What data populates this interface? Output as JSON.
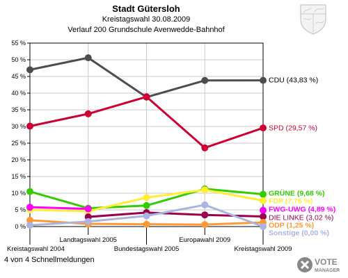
{
  "header": {
    "title": "Stadt Gütersloh",
    "subtitle": "Kreistagswahl 30.08.2009",
    "subtitle2": "Verlauf 200 Grundschule Avenwedde-Bahnhof"
  },
  "footer": {
    "text": "4 von 4 Schnellmeldungen"
  },
  "logo": {
    "line1": "VOTE",
    "line2": "MANAGER"
  },
  "chart_data": {
    "type": "line",
    "title": "Stadt Gütersloh",
    "x": [
      "Kreistagswahl 2004",
      "Landtagswahl 2005",
      "Bundestagswahl 2005",
      "Europawahl 2009",
      "Kreistagswahl 2009"
    ],
    "ylim": [
      0,
      55
    ],
    "yticks": [
      0,
      5,
      10,
      15,
      20,
      25,
      30,
      35,
      40,
      45,
      50,
      55
    ],
    "ytick_labels": [
      "0 %",
      "5 %",
      "10 %",
      "15 %",
      "20 %",
      "25 %",
      "30 %",
      "35 %",
      "40 %",
      "45 %",
      "50 %",
      "55 %"
    ],
    "grid": true,
    "series": [
      {
        "name": "CDU",
        "label": "CDU (43,83 %)",
        "color": "#4d4d4d",
        "values": [
          47.0,
          50.6,
          38.8,
          43.8,
          43.83
        ]
      },
      {
        "name": "SPD",
        "label": "SPD (29,57 %)",
        "color": "#cc0033",
        "values": [
          30.1,
          33.8,
          38.9,
          23.6,
          29.57
        ]
      },
      {
        "name": "GRÜNE",
        "label": "GRÜNE (9,68 %)",
        "color": "#33cc00",
        "values": [
          10.5,
          5.5,
          6.3,
          11.3,
          9.68
        ]
      },
      {
        "name": "FDP",
        "label": "FDP (7,76 %)",
        "color": "#ffee33",
        "values": [
          5.0,
          4.6,
          8.7,
          11.0,
          7.76
        ]
      },
      {
        "name": "FWG-UWG",
        "label": "FWG-UWG (4,89 %)",
        "color": "#ff00ff",
        "values": [
          5.8,
          5.3,
          null,
          null,
          4.89
        ]
      },
      {
        "name": "DIE LINKE",
        "label": "DIE LINKE (3,02 %)",
        "color": "#99004d",
        "values": [
          null,
          2.9,
          4.2,
          3.5,
          3.02
        ]
      },
      {
        "name": "ÖDP",
        "label": "ÖDP (1,25 %)",
        "color": "#ff9933",
        "values": [
          1.9,
          0.8,
          0.7,
          0.6,
          1.25
        ]
      },
      {
        "name": "Sonstige",
        "label": "Sonstige (0,00 %)",
        "color": "#aab4e0",
        "values": [
          0.4,
          1.5,
          3.2,
          6.5,
          0.0
        ]
      }
    ]
  }
}
